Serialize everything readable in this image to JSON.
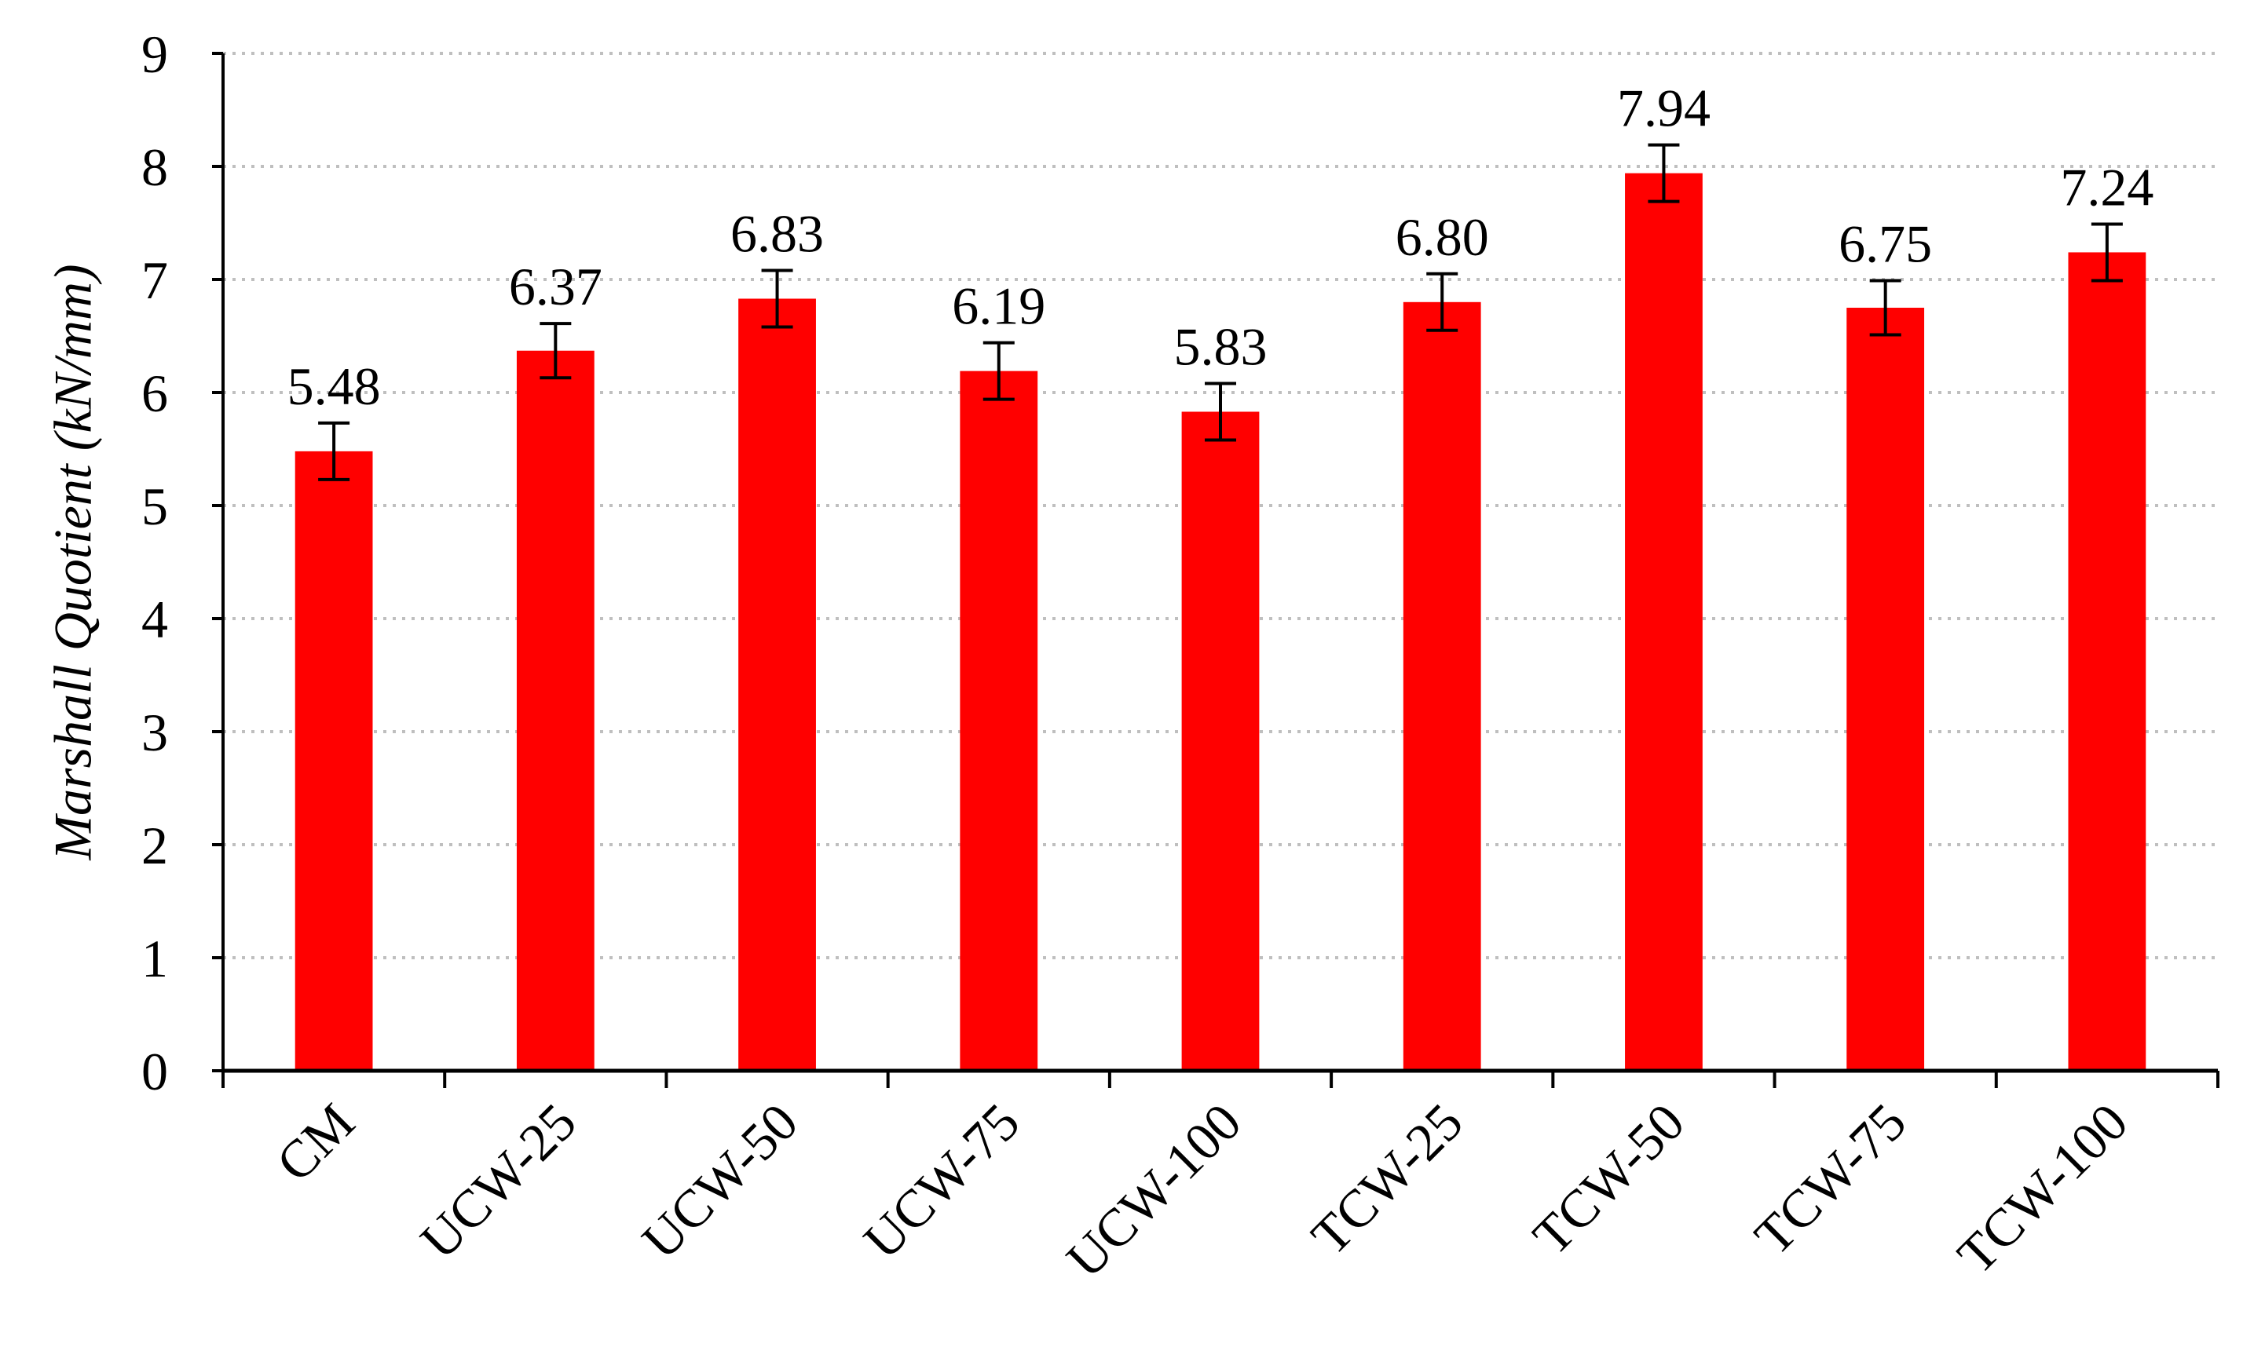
{
  "chart_data": {
    "type": "bar",
    "ylabel": "Marshall Quotient (kN/mm)",
    "categories": [
      "CM",
      "UCW-25",
      "UCW-50",
      "UCW-75",
      "UCW-100",
      "TCW-25",
      "TCW-50",
      "TCW-75",
      "TCW-100"
    ],
    "values": [
      5.48,
      6.37,
      6.83,
      6.19,
      5.83,
      6.8,
      7.94,
      6.75,
      7.24
    ],
    "value_labels": [
      "5.48",
      "6.37",
      "6.83",
      "6.19",
      "5.83",
      "6.80",
      "7.94",
      "6.75",
      "7.24"
    ],
    "errors": [
      0.25,
      0.24,
      0.25,
      0.25,
      0.25,
      0.25,
      0.25,
      0.24,
      0.25
    ],
    "color": "#ff0000",
    "ylim": [
      0,
      9
    ],
    "yticks": [
      0,
      1,
      2,
      3,
      4,
      5,
      6,
      7,
      8,
      9
    ],
    "grid": true
  }
}
